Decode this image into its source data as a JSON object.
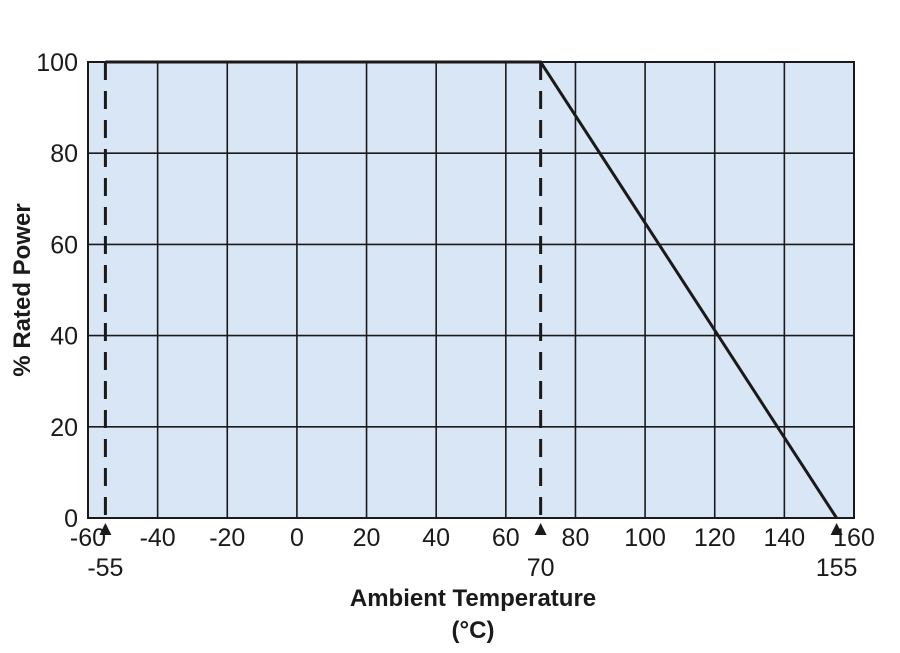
{
  "chart_data": {
    "type": "line",
    "title": "",
    "xlabel": "Ambient Temperature",
    "xlabel_unit": "(°C)",
    "ylabel": "% Rated Power",
    "xlim": [
      -60,
      160
    ],
    "ylim": [
      0,
      100
    ],
    "x_ticks": [
      "-60",
      "-40",
      "-20",
      "0",
      "20",
      "40",
      "60",
      "80",
      "100",
      "120",
      "140",
      "160"
    ],
    "y_ticks": [
      "0",
      "20",
      "40",
      "60",
      "80",
      "100"
    ],
    "grid": true,
    "background_color": "#d9e6f5",
    "line_color": "#1a1a1a",
    "series": [
      {
        "x": [
          -55,
          70,
          155
        ],
        "y": [
          100,
          100,
          0
        ]
      }
    ],
    "reference_lines": [
      {
        "x": -55,
        "y_from": 0,
        "y_to": 100,
        "style": "dashed"
      },
      {
        "x": 70,
        "y_from": 0,
        "y_to": 100,
        "style": "dashed"
      }
    ],
    "markers": [
      {
        "x": -55,
        "label": "-55"
      },
      {
        "x": 70,
        "label": "70"
      },
      {
        "x": 155,
        "label": "155"
      }
    ]
  }
}
